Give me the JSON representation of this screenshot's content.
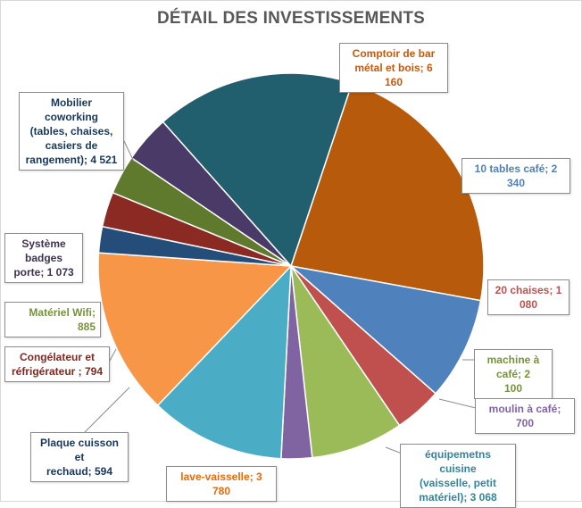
{
  "chart_data": {
    "type": "pie",
    "title": "DÉTAIL DES INVESTISSEMENTS",
    "categories": [
      "Comptoir de bar métal et bois",
      "10 tables café",
      "20 chaises",
      "machine à café",
      "moulin à café",
      "équipemetns cuisine (vaisselle, petit matériel)",
      "lave-vaisselle",
      "Plaque cuisson et rechaud",
      "Congélateur et réfrigérateur",
      "Matériel Wifi",
      "Système badges porte",
      "Mobilier coworking (tables, chaises, casiers de rangement)"
    ],
    "values": [
      6160,
      2340,
      1080,
      2100,
      700,
      3068,
      3780,
      594,
      794,
      885,
      1073,
      4521
    ],
    "colors": [
      "#b85a0b",
      "#4f81bd",
      "#c0504d",
      "#9bbb59",
      "#8064a2",
      "#4bacc6",
      "#f79646",
      "#254d7a",
      "#8b2a22",
      "#5f7a2c",
      "#4a3a67",
      "#215e6e"
    ],
    "legend": "none",
    "labels": [
      {
        "lines": [
          "Comptoir de bar",
          "métal et bois;  6 160"
        ]
      },
      {
        "lines": [
          "10 tables café;  2 340"
        ]
      },
      {
        "lines": [
          "20 chaises;  1 080"
        ]
      },
      {
        "lines": [
          "machine à café;  2",
          "100"
        ]
      },
      {
        "lines": [
          "moulin à café;   700"
        ]
      },
      {
        "lines": [
          "équipemetns cuisine",
          "(vaisselle, petit",
          "matériel); 3 068"
        ]
      },
      {
        "lines": [
          "lave-vaisselle;  3 780"
        ]
      },
      {
        "lines": [
          "Plaque cuisson et",
          "rechaud;  594"
        ]
      },
      {
        "lines": [
          "Congélateur et",
          "réfrigérateur ;  794"
        ]
      },
      {
        "lines": [
          "Matériel Wifi;   885"
        ]
      },
      {
        "lines": [
          "Système badges",
          "porte; 1 073"
        ]
      },
      {
        "lines": [
          "Mobilier coworking",
          "(tables, chaises,",
          "casiers de",
          "rangement); 4 521"
        ]
      }
    ]
  }
}
